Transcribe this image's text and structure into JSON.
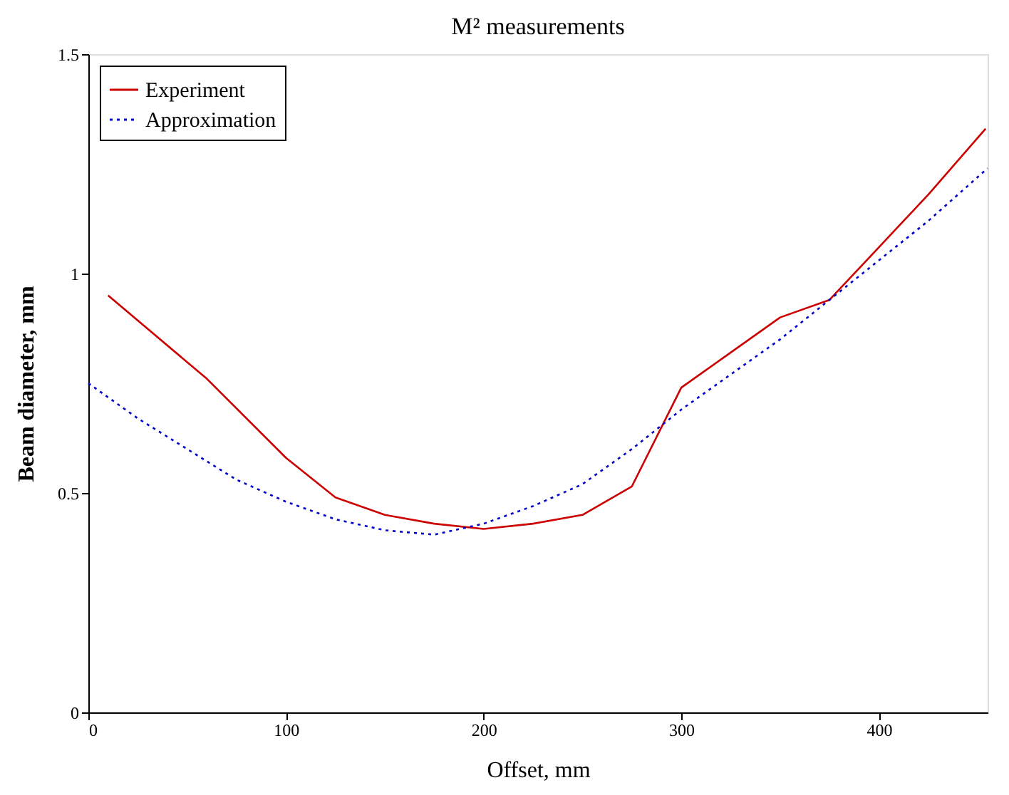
{
  "chart_data": {
    "type": "line",
    "title": "M² measurements",
    "xlabel": "Offset, mm",
    "ylabel": "Beam diameter, mm",
    "xlim": [
      0,
      455
    ],
    "ylim": [
      0,
      1.5
    ],
    "xticks": [
      0,
      100,
      200,
      300,
      400
    ],
    "yticks": [
      0,
      0.5,
      1,
      1.5
    ],
    "grid": false,
    "legend": "top left",
    "marker": "none",
    "series": [
      {
        "name": "Experiment",
        "color": "#cc0000",
        "line_style": "solid",
        "x": [
          10,
          60,
          100,
          125,
          150,
          175,
          200,
          225,
          250,
          275,
          300,
          325,
          350,
          375,
          400,
          425,
          454
        ],
        "values": [
          0.95,
          0.76,
          0.58,
          0.49,
          0.45,
          0.43,
          0.418,
          0.43,
          0.45,
          0.515,
          0.74,
          0.82,
          0.9,
          0.94,
          1.06,
          1.18,
          1.33
        ]
      },
      {
        "name": "Approximation",
        "color": "#0000cc",
        "line_style": "dotted",
        "x": [
          0,
          25,
          50,
          75,
          100,
          125,
          150,
          175,
          200,
          225,
          250,
          275,
          300,
          325,
          350,
          375,
          400,
          425,
          455
        ],
        "values": [
          0.75,
          0.67,
          0.6,
          0.53,
          0.48,
          0.44,
          0.415,
          0.405,
          0.43,
          0.47,
          0.52,
          0.6,
          0.69,
          0.77,
          0.85,
          0.94,
          1.03,
          1.12,
          1.24
        ]
      }
    ]
  }
}
